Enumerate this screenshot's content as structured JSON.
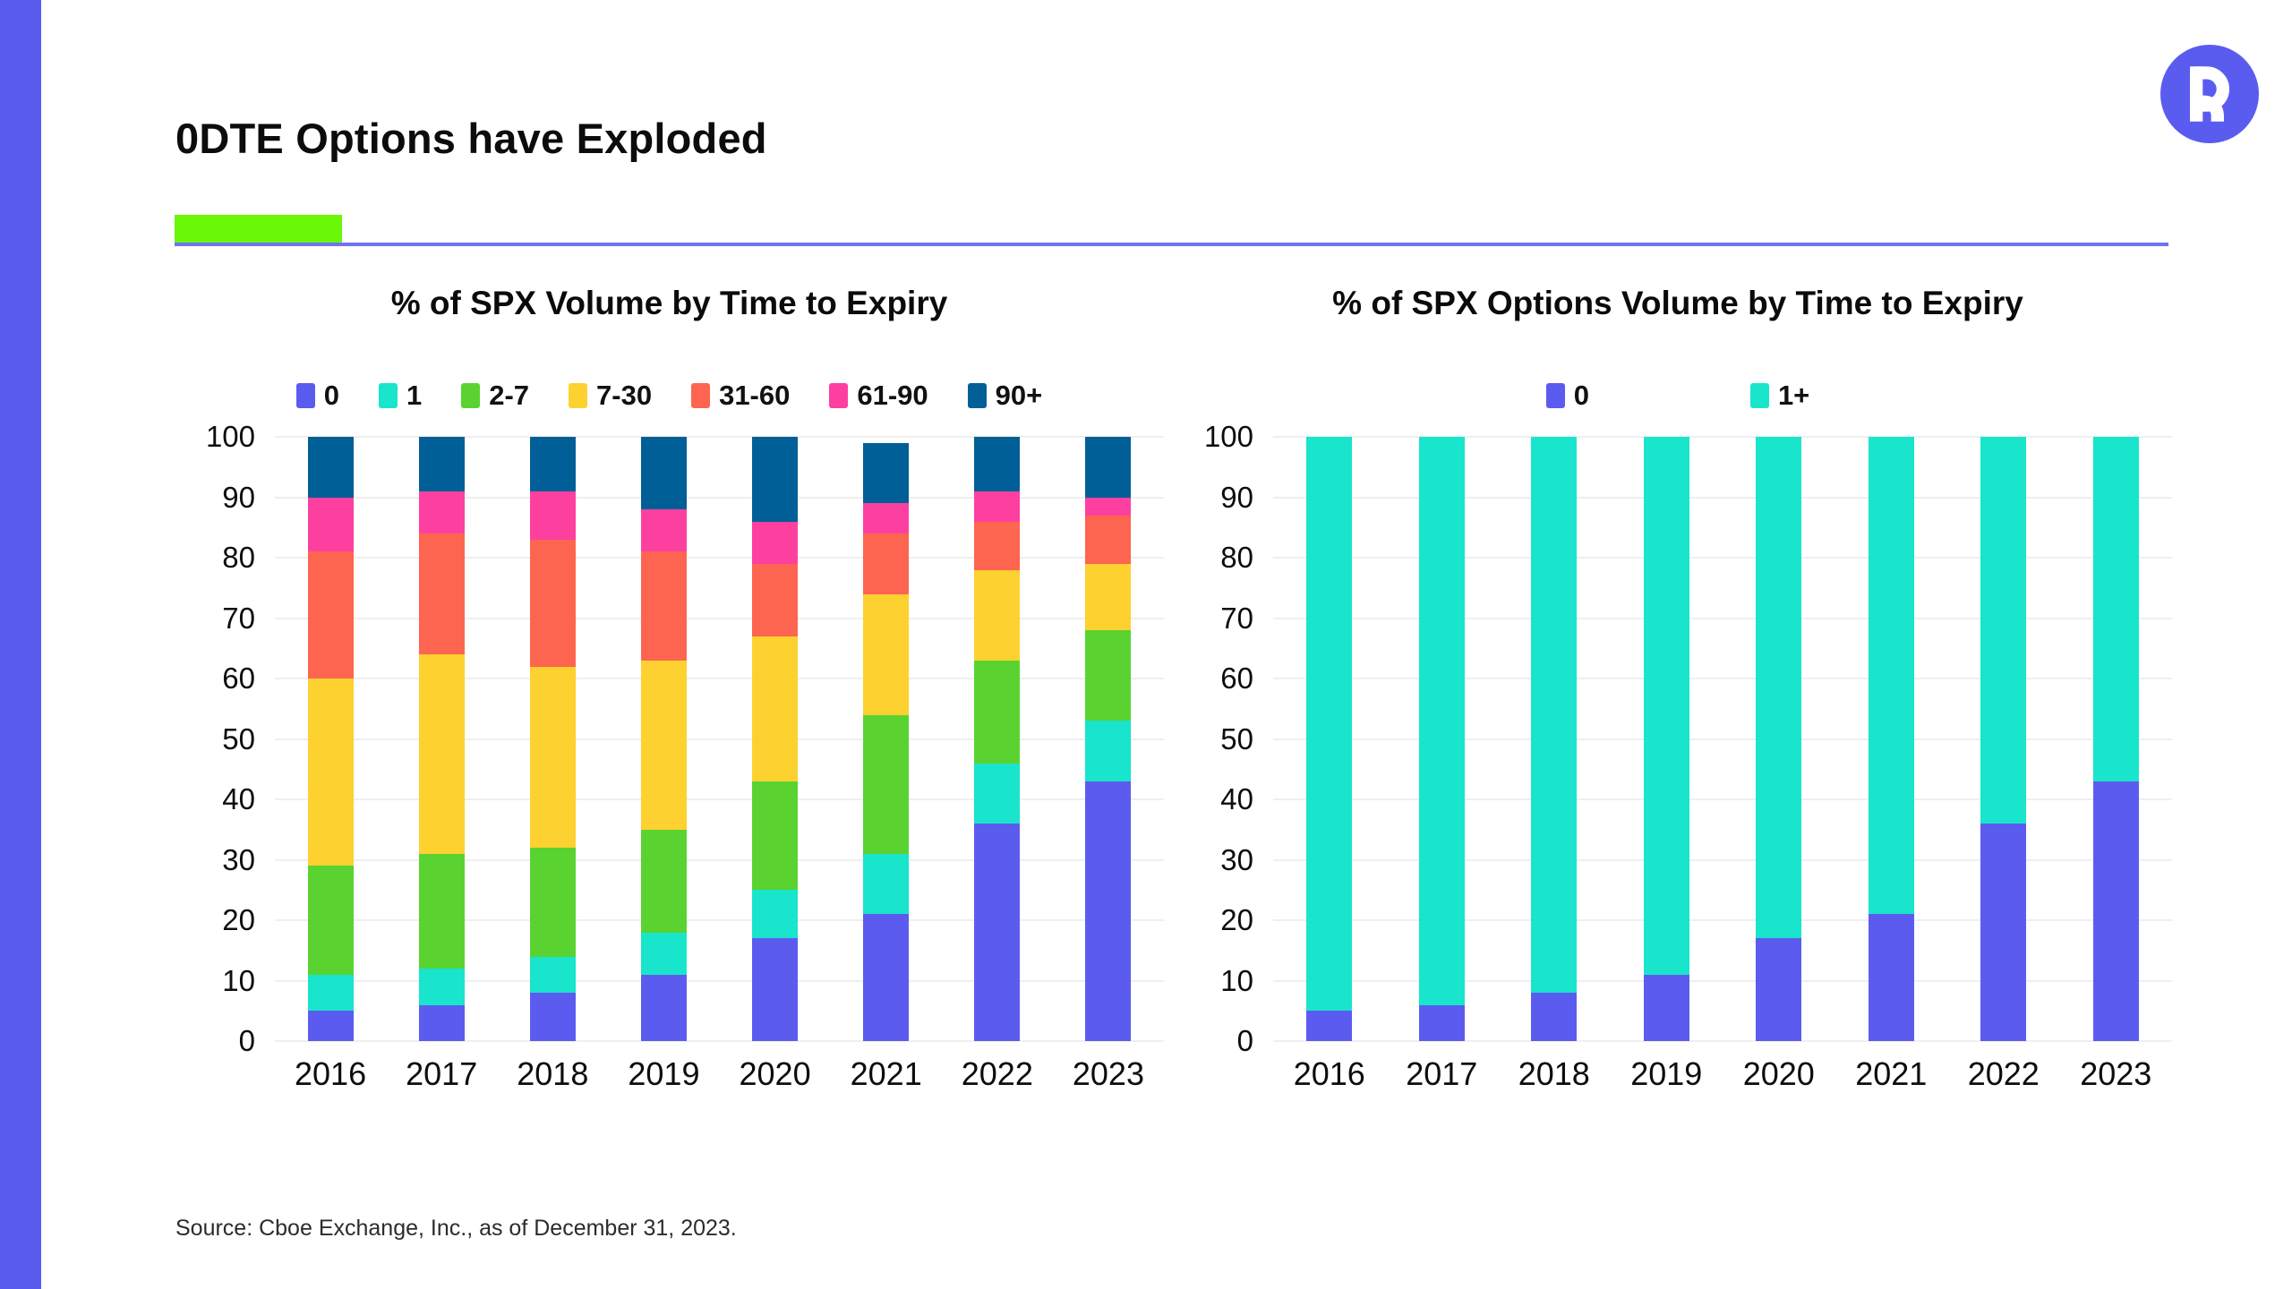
{
  "page": {
    "title": "0DTE Options have Exploded",
    "source": "Source: Cboe Exchange, Inc., as of December 31, 2023.",
    "logo_letter": "R",
    "brand_color": "#5a5cf0",
    "accent_green": "#69f607",
    "rule_color": "#6f72f4"
  },
  "chart_data": [
    {
      "type": "bar",
      "stacked": true,
      "title": "% of SPX Volume by Time to Expiry",
      "xlabel": "",
      "ylabel": "",
      "ylim": [
        0,
        100
      ],
      "yticks": [
        0,
        10,
        20,
        30,
        40,
        50,
        60,
        70,
        80,
        90,
        100
      ],
      "grid": true,
      "legend_position": "top",
      "categories": [
        "2016",
        "2017",
        "2018",
        "2019",
        "2020",
        "2021",
        "2022",
        "2023"
      ],
      "series": [
        {
          "name": "0",
          "color": "#5b5cef",
          "values": [
            5,
            6,
            8,
            11,
            17,
            21,
            36,
            43
          ]
        },
        {
          "name": "1",
          "color": "#18e5cb",
          "values": [
            6,
            6,
            6,
            7,
            8,
            10,
            10,
            10
          ]
        },
        {
          "name": "2-7",
          "color": "#5ad331",
          "values": [
            18,
            19,
            18,
            17,
            18,
            23,
            17,
            15
          ]
        },
        {
          "name": "7-30",
          "color": "#fdd130",
          "values": [
            31,
            33,
            30,
            28,
            24,
            20,
            15,
            11
          ]
        },
        {
          "name": "31-60",
          "color": "#fd6550",
          "values": [
            21,
            20,
            21,
            18,
            12,
            10,
            8,
            8
          ]
        },
        {
          "name": "61-90",
          "color": "#fd40a0",
          "values": [
            9,
            7,
            8,
            7,
            7,
            5,
            5,
            3
          ]
        },
        {
          "name": "90+",
          "color": "#005f96",
          "values": [
            10,
            9,
            9,
            12,
            14,
            10,
            9,
            10
          ]
        }
      ]
    },
    {
      "type": "bar",
      "stacked": true,
      "title": "% of SPX Options Volume by Time to Expiry",
      "xlabel": "",
      "ylabel": "",
      "ylim": [
        0,
        100
      ],
      "yticks": [
        0,
        10,
        20,
        30,
        40,
        50,
        60,
        70,
        80,
        90,
        100
      ],
      "grid": true,
      "legend_position": "top",
      "categories": [
        "2016",
        "2017",
        "2018",
        "2019",
        "2020",
        "2021",
        "2022",
        "2023"
      ],
      "series": [
        {
          "name": "0",
          "color": "#5b5cef",
          "values": [
            5,
            6,
            8,
            11,
            17,
            21,
            36,
            43
          ]
        },
        {
          "name": "1+",
          "color": "#18e5cb",
          "values": [
            95,
            94,
            92,
            89,
            83,
            79,
            64,
            57
          ]
        }
      ]
    }
  ]
}
